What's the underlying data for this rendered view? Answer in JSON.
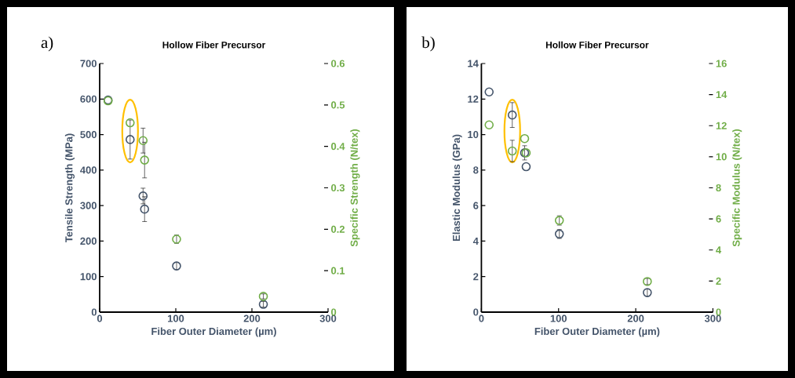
{
  "chart_data": [
    {
      "type": "scatter",
      "title": "Hollow Fiber Precursor",
      "annotations": [
        "a)"
      ],
      "xlabel": "Fiber Outer Diameter (µm)",
      "ylabel": "Tensile Strength (MPa)",
      "y2label": "Specific Strength (N/tex)",
      "xlim": [
        0,
        300
      ],
      "xticks": [
        0,
        100,
        200,
        300
      ],
      "ylim": [
        0,
        700
      ],
      "yticks": [
        0,
        100,
        200,
        300,
        400,
        500,
        600,
        700
      ],
      "y2lim": [
        0,
        0.6
      ],
      "y2ticks": [
        0,
        0.1,
        0.2,
        0.3,
        0.4,
        0.5,
        0.6
      ],
      "marker": "circle",
      "series": [
        {
          "color": "#44546a",
          "x": [
            11,
            40,
            57,
            59,
            101,
            215
          ],
          "values": [
            597,
            486,
            327,
            290,
            130,
            22
          ],
          "errors": [
            null,
            55,
            22,
            35,
            10,
            8
          ]
        },
        {
          "color": "#70ad47",
          "axis": "y2",
          "x": [
            11,
            40,
            57,
            59,
            101,
            215
          ],
          "values": [
            0.51,
            0.457,
            0.414,
            0.367,
            0.176,
            0.038
          ],
          "errors": [
            null,
            null,
            0.03,
            0.043,
            0.01,
            0.006
          ]
        }
      ]
    },
    {
      "type": "scatter",
      "title": "Hollow Fiber Precursor",
      "annotations": [
        "b)"
      ],
      "xlabel": "Fiber Outer Diameter (µm)",
      "ylabel": "Elastic Modulus (GPa)",
      "y2label": "Specific Modulus (N/tex)",
      "xlim": [
        0,
        300
      ],
      "xticks": [
        0,
        100,
        200,
        300
      ],
      "ylim": [
        0,
        14
      ],
      "yticks": [
        0,
        2,
        4,
        6,
        8,
        10,
        12,
        14
      ],
      "y2lim": [
        0,
        16
      ],
      "y2ticks": [
        0,
        2,
        4,
        6,
        8,
        10,
        12,
        14,
        16
      ],
      "marker": "circle",
      "series": [
        {
          "color": "#44546a",
          "x": [
            10,
            40,
            56,
            58,
            101,
            215
          ],
          "values": [
            12.4,
            11.1,
            8.97,
            8.19,
            4.4,
            1.1
          ],
          "errors": [
            null,
            0.7,
            0.4,
            null,
            0.25,
            0.2
          ]
        },
        {
          "color": "#70ad47",
          "axis": "y2",
          "x": [
            10,
            40,
            56,
            58,
            101,
            215
          ],
          "values": [
            12.05,
            10.37,
            11.17,
            10.25,
            5.9,
            1.97
          ],
          "errors": [
            null,
            0.69,
            null,
            null,
            0.3,
            0.2
          ]
        }
      ]
    }
  ]
}
